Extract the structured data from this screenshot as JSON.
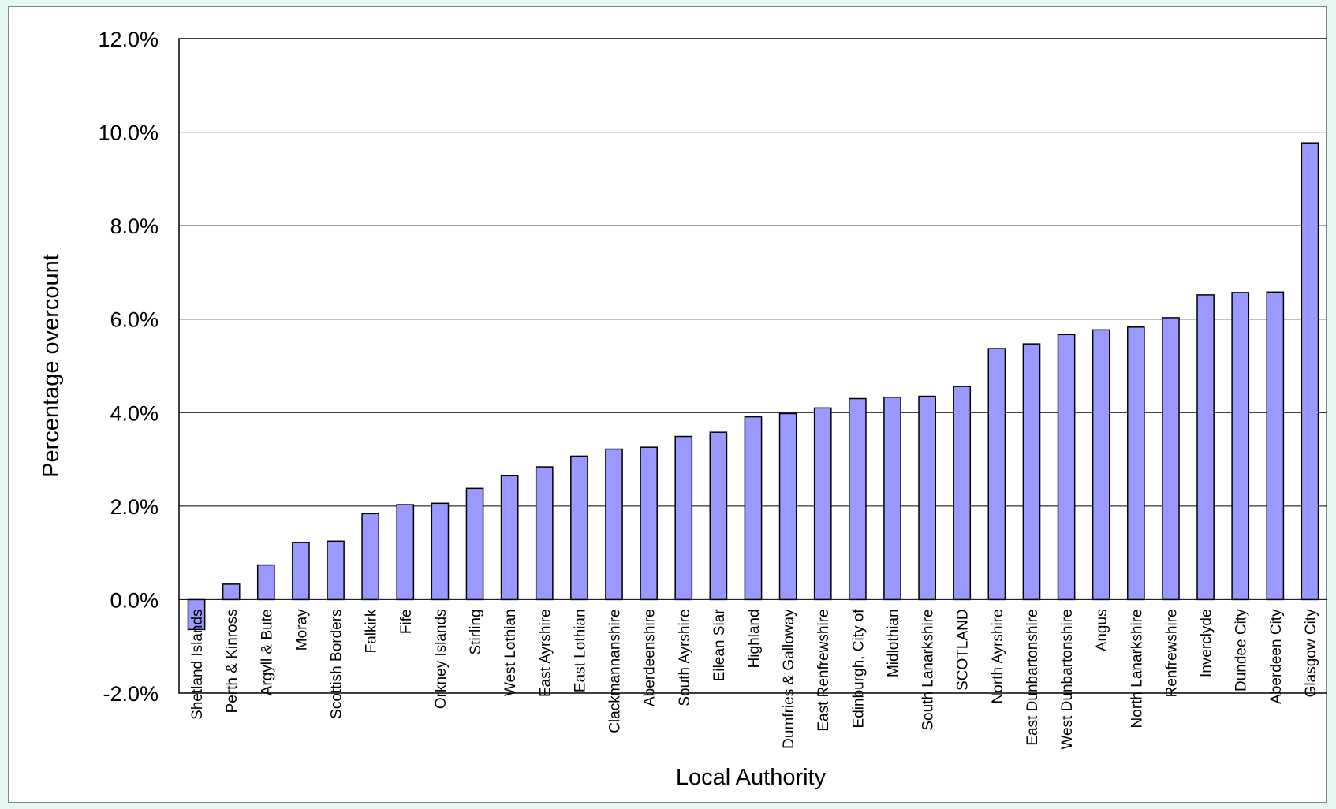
{
  "chart_data": {
    "type": "bar",
    "title": "",
    "xlabel": "Local Authority",
    "ylabel": "Percentage overcount",
    "ylim": [
      -0.02,
      0.12
    ],
    "yticks": [
      "-2.0%",
      "0.0%",
      "2.0%",
      "4.0%",
      "6.0%",
      "8.0%",
      "10.0%",
      "12.0%"
    ],
    "grid": true,
    "legend": "none",
    "bar_color": "#9999ff",
    "bar_edge_color": "#000000",
    "categories": [
      "Shetland Islands",
      "Perth & Kinross",
      "Argyll & Bute",
      "Moray",
      "Scottish Borders",
      "Falkirk",
      "Fife",
      "Orkney Islands",
      "Stirling",
      "West Lothian",
      "East Ayrshire",
      "East Lothian",
      "Clackmannanshire",
      "Aberdeenshire",
      "South Ayrshire",
      "Eilean Siar",
      "Highland",
      "Dumfries & Galloway",
      "East Renfrewshire",
      "Edinburgh, City of",
      "Midlothian",
      "South Lanarkshire",
      "SCOTLAND",
      "North Ayrshire",
      "East Dunbartonshire",
      "West Dunbartonshire",
      "Angus",
      "North Lanarkshire",
      "Renfrewshire",
      "Inverclyde",
      "Dundee City",
      "Aberdeen City",
      "Glasgow City"
    ],
    "values": [
      -0.0064,
      0.0033,
      0.0074,
      0.0122,
      0.0125,
      0.0184,
      0.0203,
      0.0206,
      0.0238,
      0.0265,
      0.0284,
      0.0307,
      0.0322,
      0.0326,
      0.0349,
      0.0358,
      0.0391,
      0.0398,
      0.041,
      0.043,
      0.0433,
      0.0435,
      0.0456,
      0.0537,
      0.0547,
      0.0567,
      0.0577,
      0.0583,
      0.0603,
      0.0652,
      0.0657,
      0.0658,
      0.0977
    ]
  }
}
